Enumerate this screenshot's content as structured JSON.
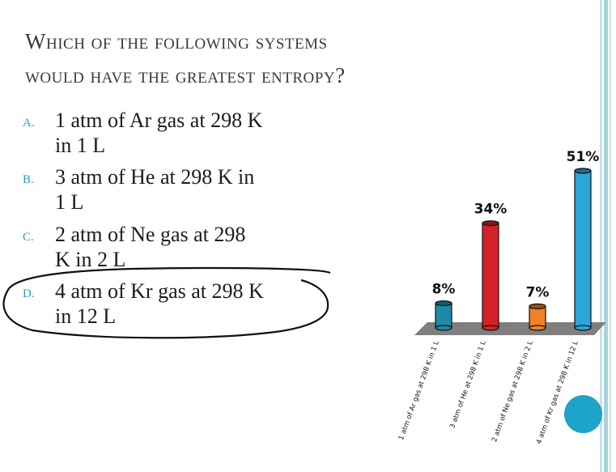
{
  "title": {
    "line1": "Which of the following systems",
    "line2": "would have the greatest entropy?"
  },
  "options": [
    {
      "letter": "A.",
      "line1": "1 atm of Ar gas at 298 K",
      "line2": "in 1 L"
    },
    {
      "letter": "B.",
      "line1": "3 atm of He at 298 K in",
      "line2": "1 L"
    },
    {
      "letter": "C.",
      "line1": "2 atm of Ne gas at 298",
      "line2": "K in 2 L"
    },
    {
      "letter": "D.",
      "line1": "4 atm of Kr gas at 298 K",
      "line2": "in 12 L"
    }
  ],
  "chart_data": {
    "type": "bar",
    "categories": [
      "1 atm of Ar gas at 298 K in 1 L",
      "3 atm of He at 298 K in 1 L",
      "2 atm of Ne gas at 298 K in 2 L",
      "4 atm of Kr gas at 298 K in 12 L"
    ],
    "values": [
      8,
      34,
      7,
      51
    ],
    "value_labels": [
      "8%",
      "34%",
      "7%",
      "51%"
    ],
    "unit": "%",
    "ylim": [
      0,
      51
    ],
    "colors": [
      "#1f8aa8",
      "#d42128",
      "#f08127",
      "#2aa6d8"
    ],
    "floor_color": "#7f7f7f",
    "grid": false,
    "legend": "none"
  },
  "colors": {
    "accent": "#2e9fb7",
    "stripe": "#a8d3dd",
    "dot": "#1ea3c9"
  }
}
